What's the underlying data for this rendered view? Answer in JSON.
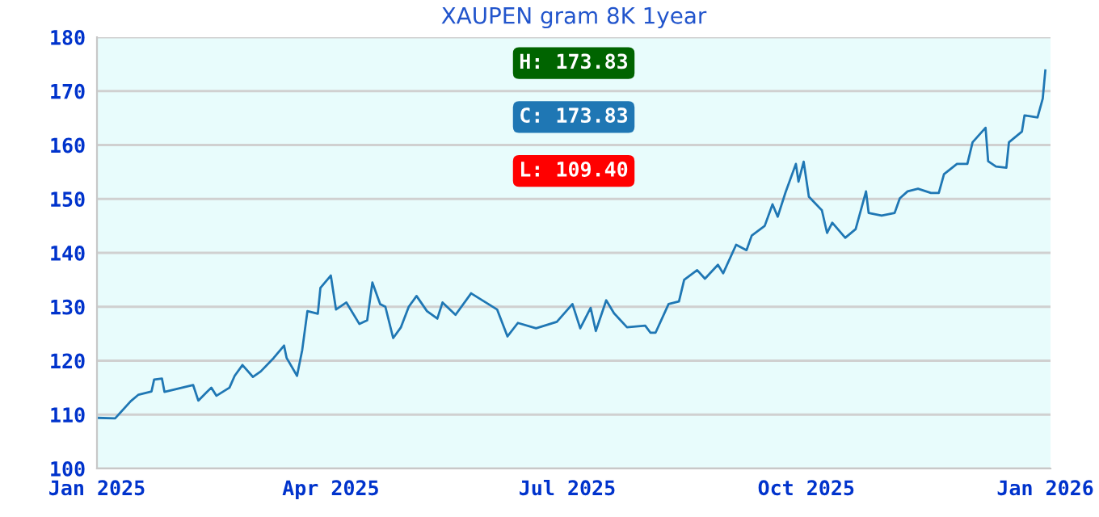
{
  "chart_data": {
    "type": "line",
    "title": "XAUPEN gram 8K 1year",
    "x": [
      "2025-01-01",
      "2025-01-08",
      "2025-01-14",
      "2025-01-17",
      "2025-01-22",
      "2025-01-23",
      "2025-01-26",
      "2025-01-27",
      "2025-02-07",
      "2025-02-09",
      "2025-02-14",
      "2025-02-16",
      "2025-02-21",
      "2025-02-23",
      "2025-02-26",
      "2025-03-02",
      "2025-03-05",
      "2025-03-10",
      "2025-03-14",
      "2025-03-15",
      "2025-03-19",
      "2025-03-21",
      "2025-03-23",
      "2025-03-27",
      "2025-03-28",
      "2025-04-01",
      "2025-04-03",
      "2025-04-07",
      "2025-04-12",
      "2025-04-15",
      "2025-04-17",
      "2025-04-20",
      "2025-04-22",
      "2025-04-25",
      "2025-04-28",
      "2025-05-01",
      "2025-05-04",
      "2025-05-08",
      "2025-05-12",
      "2025-05-14",
      "2025-05-19",
      "2025-05-25",
      "2025-05-30",
      "2025-06-04",
      "2025-06-08",
      "2025-06-12",
      "2025-06-19",
      "2025-06-27",
      "2025-07-03",
      "2025-07-06",
      "2025-07-10",
      "2025-07-12",
      "2025-07-16",
      "2025-07-19",
      "2025-07-24",
      "2025-07-31",
      "2025-08-02",
      "2025-08-04",
      "2025-08-09",
      "2025-08-13",
      "2025-08-15",
      "2025-08-20",
      "2025-08-23",
      "2025-08-28",
      "2025-08-30",
      "2025-09-04",
      "2025-09-08",
      "2025-09-10",
      "2025-09-15",
      "2025-09-18",
      "2025-09-20",
      "2025-09-23",
      "2025-09-27",
      "2025-09-28",
      "2025-09-30",
      "2025-10-02",
      "2025-10-04",
      "2025-10-07",
      "2025-10-09",
      "2025-10-11",
      "2025-10-16",
      "2025-10-20",
      "2025-10-24",
      "2025-10-25",
      "2025-10-30",
      "2025-11-04",
      "2025-11-06",
      "2025-11-09",
      "2025-11-13",
      "2025-11-18",
      "2025-11-21",
      "2025-11-23",
      "2025-11-28",
      "2025-12-02",
      "2025-12-04",
      "2025-12-09",
      "2025-12-10",
      "2025-12-13",
      "2025-12-17",
      "2025-12-18",
      "2025-12-23",
      "2025-12-24",
      "2025-12-29",
      "2025-12-31",
      "2026-01-01"
    ],
    "series": [
      {
        "color": "#1f77b4",
        "values": [
          109.4,
          109.3,
          112.5,
          113.7,
          114.3,
          116.5,
          116.7,
          114.2,
          115.5,
          112.6,
          115,
          113.5,
          115,
          117.2,
          119.2,
          117,
          118,
          120.5,
          122.8,
          120.5,
          117.2,
          122,
          129.2,
          128.7,
          133.5,
          135.8,
          129.5,
          130.8,
          126.8,
          127.5,
          134.5,
          130.5,
          130,
          124.2,
          126.2,
          130,
          132,
          129.2,
          127.8,
          130.8,
          128.5,
          132.5,
          131,
          129.5,
          124.5,
          127,
          126,
          127.2,
          130.5,
          126,
          129.8,
          125.5,
          131.2,
          128.8,
          126.2,
          126.5,
          125.2,
          125.2,
          130.5,
          131,
          135,
          136.8,
          135.2,
          137.8,
          136.2,
          141.5,
          140.5,
          143.2,
          145,
          149,
          146.7,
          151.2,
          156.5,
          153.2,
          156.9,
          150.4,
          149.4,
          147.9,
          143.7,
          145.6,
          142.8,
          144.4,
          151.4,
          147.4,
          146.9,
          147.4,
          150.1,
          151.4,
          151.9,
          151.1,
          151.1,
          154.6,
          156.5,
          156.5,
          160.5,
          163.2,
          157,
          156,
          155.8,
          160.5,
          162.5,
          165.5,
          165.1,
          168.6,
          173.83
        ]
      }
    ],
    "xlim": [
      "2025-01-01",
      "2026-01-03"
    ],
    "xticks": [
      {
        "value": "2025-01-01",
        "label": "Jan 2025"
      },
      {
        "value": "2025-04-01",
        "label": "Apr 2025"
      },
      {
        "value": "2025-07-01",
        "label": "Jul 2025"
      },
      {
        "value": "2025-10-01",
        "label": "Oct 2025"
      },
      {
        "value": "2026-01-01",
        "label": "Jan 2026"
      }
    ],
    "ylim": [
      100,
      180
    ],
    "yticks": [
      100,
      110,
      120,
      130,
      140,
      150,
      160,
      170,
      180
    ],
    "grid": "y",
    "legend": false,
    "marker": "none",
    "line_style": "solid",
    "annotations": [
      "H: 173.83",
      "C: 173.83",
      "L: 109.40"
    ]
  }
}
